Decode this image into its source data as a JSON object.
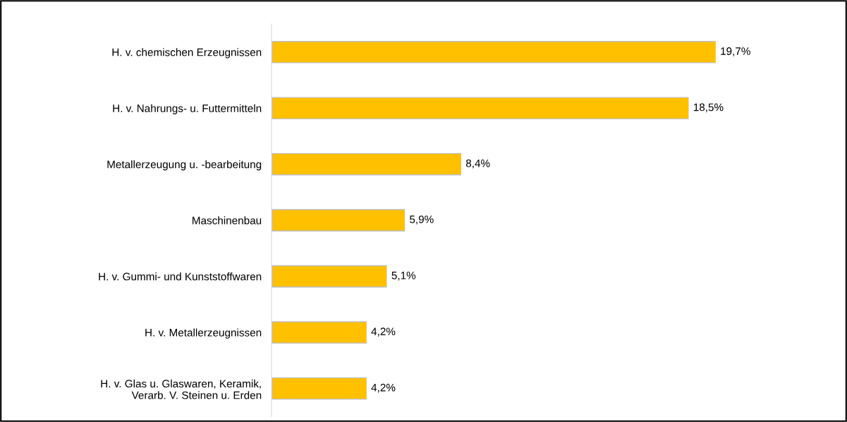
{
  "chart_data": {
    "type": "bar",
    "orientation": "horizontal",
    "categories": [
      "H. v. chemischen Erzeugnissen",
      "H. v. Nahrungs- u. Futtermitteln",
      "Metallerzeugung u. -bearbeitung",
      "Maschinenbau",
      "H. v. Gummi- und Kunststoffwaren",
      "H. v. Metallerzeugnissen",
      "H. v. Glas u. Glaswaren, Keramik,\nVerarb. V. Steinen u. Erden"
    ],
    "values": [
      19.7,
      18.5,
      8.4,
      5.9,
      5.1,
      4.2,
      4.2
    ],
    "value_labels": [
      "19,7%",
      "18,5%",
      "8,4%",
      "5,9%",
      "5,1%",
      "4,2%",
      "4,2%"
    ],
    "color": "#ffc000",
    "grid": false,
    "legend": false,
    "tick_labels": "y"
  }
}
